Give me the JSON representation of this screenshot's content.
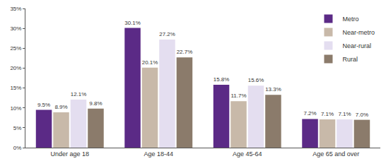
{
  "chart_data": {
    "type": "bar",
    "categories": [
      "Under age 18",
      "Age 18-44",
      "Age 45-64",
      "Age 65 and over"
    ],
    "series": [
      {
        "name": "Metro",
        "color": "#5b2a86",
        "values": [
          9.5,
          30.1,
          15.8,
          7.2
        ],
        "value_labels": [
          "9.5%",
          "30.1%",
          "15.8%",
          "7.2%"
        ]
      },
      {
        "name": "Near-metro",
        "color": "#c8b9a9",
        "values": [
          8.9,
          20.1,
          11.7,
          7.1
        ],
        "value_labels": [
          "8.9%",
          "20.1%",
          "11.7%",
          "7.1%"
        ]
      },
      {
        "name": "Near-rural",
        "color": "#e4def0",
        "values": [
          12.1,
          27.2,
          15.6,
          7.1
        ],
        "value_labels": [
          "12.1%",
          "27.2%",
          "15.6%",
          "7.1%"
        ]
      },
      {
        "name": "Rural",
        "color": "#8b7b6b",
        "values": [
          9.8,
          22.7,
          13.3,
          7.0
        ],
        "value_labels": [
          "9.8%",
          "22.7%",
          "13.3%",
          "7.0%"
        ]
      }
    ],
    "ylim": [
      0,
      35
    ],
    "yticks": [
      {
        "value": 0,
        "label": "0%"
      },
      {
        "value": 5,
        "label": "5%"
      },
      {
        "value": 10,
        "label": "10%"
      },
      {
        "value": 15,
        "label": "15%"
      },
      {
        "value": 20,
        "label": "20%"
      },
      {
        "value": 25,
        "label": "25%"
      },
      {
        "value": 30,
        "label": "30%"
      },
      {
        "value": 35,
        "label": "35%"
      }
    ],
    "grid": false,
    "legend": "top-right",
    "data_labels": true
  }
}
